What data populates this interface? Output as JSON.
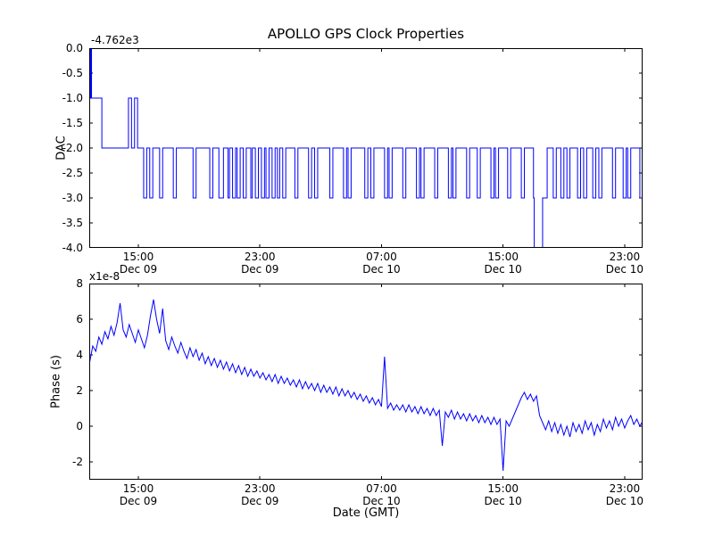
{
  "figure": {
    "title": "APOLLO GPS Clock Properties",
    "background": "#ffffff",
    "line_color": "#0000ff",
    "axes_color": "#000000"
  },
  "chart_data": [
    {
      "id": "dac",
      "type": "line",
      "step": true,
      "ylabel": "DAC",
      "offset_text": "-4.762e3",
      "x_unit": "hours since Dec 09 00:00 (GMT)",
      "xlim": [
        11.77,
        48.18
      ],
      "ylim": [
        -4.0,
        0.0
      ],
      "yticks": [
        0.0,
        -0.5,
        -1.0,
        -1.5,
        -2.0,
        -2.5,
        -3.0,
        -3.5,
        -4.0
      ],
      "ytick_labels": [
        "0.0",
        "-0.5",
        "-1.0",
        "-1.5",
        "-2.0",
        "-2.5",
        "-3.0",
        "-3.5",
        "-4.0"
      ],
      "xticks": [
        15,
        23,
        31,
        39,
        47
      ],
      "xtick_labels": [
        [
          "15:00",
          "Dec 09"
        ],
        [
          "23:00",
          "Dec 09"
        ],
        [
          "07:00",
          "Dec 10"
        ],
        [
          "15:00",
          "Dec 10"
        ],
        [
          "23:00",
          "Dec 10"
        ]
      ],
      "points": [
        [
          11.77,
          0
        ],
        [
          11.82,
          -1
        ],
        [
          11.87,
          0
        ],
        [
          11.92,
          -1
        ],
        [
          12.6,
          -2
        ],
        [
          14.35,
          -1
        ],
        [
          14.55,
          -2
        ],
        [
          14.75,
          -1
        ],
        [
          14.95,
          -2
        ],
        [
          15.35,
          -3
        ],
        [
          15.55,
          -2
        ],
        [
          15.75,
          -3
        ],
        [
          15.95,
          -2
        ],
        [
          16.4,
          -3
        ],
        [
          16.6,
          -2
        ],
        [
          17.3,
          -3
        ],
        [
          17.5,
          -2
        ],
        [
          18.6,
          -3
        ],
        [
          18.8,
          -2
        ],
        [
          19.7,
          -3
        ],
        [
          19.9,
          -2
        ],
        [
          20.3,
          -3
        ],
        [
          20.6,
          -2
        ],
        [
          20.9,
          -3
        ],
        [
          21.0,
          -2
        ],
        [
          21.2,
          -3
        ],
        [
          21.4,
          -2
        ],
        [
          21.5,
          -3
        ],
        [
          21.7,
          -2
        ],
        [
          21.9,
          -3
        ],
        [
          22.1,
          -2
        ],
        [
          22.4,
          -3
        ],
        [
          22.5,
          -2
        ],
        [
          22.7,
          -3
        ],
        [
          22.9,
          -2
        ],
        [
          23.1,
          -3
        ],
        [
          23.3,
          -2
        ],
        [
          23.4,
          -3
        ],
        [
          23.6,
          -2
        ],
        [
          23.8,
          -3
        ],
        [
          24.0,
          -2
        ],
        [
          24.15,
          -3
        ],
        [
          24.3,
          -2
        ],
        [
          24.5,
          -3
        ],
        [
          24.7,
          -2
        ],
        [
          25.3,
          -3
        ],
        [
          25.5,
          -2
        ],
        [
          26.2,
          -3
        ],
        [
          26.4,
          -2
        ],
        [
          26.6,
          -3
        ],
        [
          26.8,
          -2
        ],
        [
          27.6,
          -3
        ],
        [
          27.8,
          -2
        ],
        [
          28.5,
          -3
        ],
        [
          28.7,
          -2
        ],
        [
          28.8,
          -3
        ],
        [
          29.0,
          -2
        ],
        [
          29.9,
          -3
        ],
        [
          30.1,
          -2
        ],
        [
          30.3,
          -3
        ],
        [
          30.5,
          -2
        ],
        [
          31.2,
          -3
        ],
        [
          31.4,
          -2
        ],
        [
          31.5,
          -3
        ],
        [
          31.7,
          -2
        ],
        [
          32.4,
          -3
        ],
        [
          32.6,
          -2
        ],
        [
          33.3,
          -3
        ],
        [
          33.5,
          -2
        ],
        [
          33.6,
          -3
        ],
        [
          33.8,
          -2
        ],
        [
          34.5,
          -3
        ],
        [
          34.7,
          -2
        ],
        [
          35.4,
          -3
        ],
        [
          35.6,
          -2
        ],
        [
          35.7,
          -3
        ],
        [
          35.9,
          -2
        ],
        [
          36.6,
          -3
        ],
        [
          36.8,
          -2
        ],
        [
          37.3,
          -3
        ],
        [
          37.5,
          -2
        ],
        [
          38.2,
          -3
        ],
        [
          38.4,
          -2
        ],
        [
          38.5,
          -3
        ],
        [
          38.7,
          -2
        ],
        [
          39.3,
          -3
        ],
        [
          39.5,
          -2
        ],
        [
          40.2,
          -3
        ],
        [
          40.4,
          -2
        ],
        [
          41.0,
          -3
        ],
        [
          41.05,
          -4
        ],
        [
          41.6,
          -3
        ],
        [
          41.9,
          -2
        ],
        [
          42.3,
          -3
        ],
        [
          42.5,
          -2
        ],
        [
          42.8,
          -3
        ],
        [
          43.0,
          -2
        ],
        [
          43.2,
          -3
        ],
        [
          43.4,
          -2
        ],
        [
          43.9,
          -3
        ],
        [
          44.1,
          -2
        ],
        [
          44.3,
          -3
        ],
        [
          44.5,
          -2
        ],
        [
          44.9,
          -3
        ],
        [
          45.1,
          -2
        ],
        [
          45.3,
          -3
        ],
        [
          45.5,
          -2
        ],
        [
          46.2,
          -3
        ],
        [
          46.4,
          -2
        ],
        [
          46.9,
          -3
        ],
        [
          47.1,
          -2
        ],
        [
          47.2,
          -3
        ],
        [
          47.4,
          -2
        ],
        [
          48.0,
          -3
        ],
        [
          48.18,
          -3
        ]
      ]
    },
    {
      "id": "phase",
      "type": "line",
      "step": false,
      "ylabel": "Phase (s)",
      "xlabel": "Date (GMT)",
      "offset_text": "x1e-8",
      "x_unit": "hours since Dec 09 00:00 (GMT)",
      "value_unit": "1e-8 s",
      "xlim": [
        11.77,
        48.18
      ],
      "ylim": [
        -3,
        8
      ],
      "yticks": [
        -2,
        0,
        2,
        4,
        6,
        8
      ],
      "ytick_labels": [
        "-2",
        "0",
        "2",
        "4",
        "6",
        "8"
      ],
      "xticks": [
        15,
        23,
        31,
        39,
        47
      ],
      "xtick_labels": [
        [
          "15:00",
          "Dec 09"
        ],
        [
          "23:00",
          "Dec 09"
        ],
        [
          "07:00",
          "Dec 10"
        ],
        [
          "15:00",
          "Dec 10"
        ],
        [
          "23:00",
          "Dec 10"
        ]
      ],
      "t0": 11.8,
      "dt": 0.2,
      "values": [
        3.6,
        4.5,
        4.2,
        5.0,
        4.6,
        5.3,
        4.9,
        5.6,
        5.1,
        5.8,
        6.9,
        5.4,
        5.0,
        5.7,
        5.2,
        4.7,
        5.4,
        4.9,
        4.4,
        5.1,
        6.2,
        7.1,
        6.0,
        5.2,
        6.6,
        4.8,
        4.3,
        5.0,
        4.5,
        4.1,
        4.7,
        4.2,
        3.8,
        4.4,
        3.9,
        4.3,
        3.7,
        4.1,
        3.5,
        3.9,
        3.4,
        3.8,
        3.3,
        3.7,
        3.2,
        3.6,
        3.1,
        3.5,
        3.0,
        3.4,
        2.9,
        3.3,
        2.8,
        3.2,
        2.8,
        3.1,
        2.7,
        3.0,
        2.6,
        2.9,
        2.5,
        2.9,
        2.4,
        2.8,
        2.4,
        2.7,
        2.3,
        2.6,
        2.2,
        2.6,
        2.1,
        2.5,
        2.1,
        2.4,
        2.0,
        2.4,
        1.9,
        2.3,
        1.9,
        2.2,
        1.8,
        2.2,
        1.7,
        2.1,
        1.7,
        2.0,
        1.6,
        1.9,
        1.5,
        1.8,
        1.4,
        1.7,
        1.3,
        1.6,
        1.2,
        1.5,
        1.1,
        3.9,
        1.0,
        1.3,
        0.9,
        1.2,
        0.9,
        1.2,
        0.8,
        1.2,
        0.8,
        1.1,
        0.7,
        1.1,
        0.7,
        1.0,
        0.6,
        1.0,
        0.6,
        0.9,
        -1.1,
        0.8,
        0.5,
        0.9,
        0.4,
        0.8,
        0.4,
        0.7,
        0.3,
        0.7,
        0.3,
        0.6,
        0.2,
        0.6,
        0.2,
        0.5,
        0.1,
        0.5,
        0.1,
        0.4,
        -2.5,
        0.3,
        0.0,
        0.4,
        0.8,
        1.2,
        1.6,
        1.9,
        1.5,
        1.8,
        1.4,
        1.7,
        0.6,
        0.2,
        -0.2,
        0.3,
        -0.3,
        0.2,
        -0.4,
        0.1,
        -0.5,
        0.0,
        -0.6,
        0.2,
        -0.3,
        0.1,
        -0.4,
        0.3,
        -0.2,
        0.2,
        -0.5,
        0.1,
        -0.3,
        0.4,
        -0.1,
        0.3,
        -0.2,
        0.5,
        0.0,
        0.4,
        -0.1,
        0.3,
        0.6,
        0.1,
        0.4,
        0.0,
        0.3
      ]
    }
  ]
}
